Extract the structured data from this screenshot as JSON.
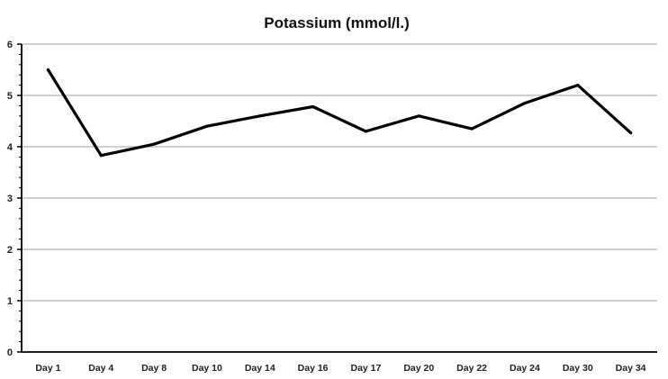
{
  "chart_data": {
    "type": "line",
    "title": "Potassium (mmol/l.)",
    "xlabel": "",
    "ylabel": "",
    "categories": [
      "Day 1",
      "Day 4",
      "Day 8",
      "Day 10",
      "Day 14",
      "Day 16",
      "Day 17",
      "Day 20",
      "Day 22",
      "Day 24",
      "Day 30",
      "Day 34"
    ],
    "series": [
      {
        "values": [
          5.5,
          3.83,
          4.05,
          4.4,
          4.6,
          4.78,
          4.3,
          4.6,
          4.35,
          4.85,
          5.2,
          4.27
        ],
        "color": "#000000"
      }
    ],
    "ylim": [
      0,
      6
    ],
    "yticks": [
      0,
      1,
      2,
      3,
      4,
      5,
      6
    ],
    "grid": true,
    "legend": "none",
    "colors": {
      "line": "#000000",
      "grid": "#b3b3b3",
      "axis": "#000000"
    }
  }
}
